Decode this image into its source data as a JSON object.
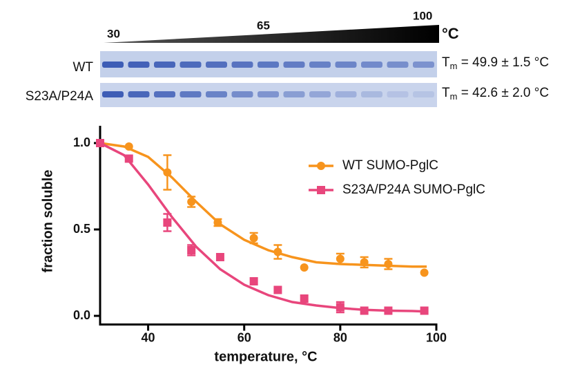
{
  "gel": {
    "temperature_labels": [
      "30",
      "65",
      "100"
    ],
    "unit": "°C",
    "rows": [
      {
        "label": "WT",
        "tm_symbol": "T",
        "tm_subscript": "m",
        "tm_text": " = 49.9 ± 1.5 °C"
      },
      {
        "label": "S23A/P24A",
        "tm_symbol": "T",
        "tm_subscript": "m",
        "tm_text": " = 42.6 ± 2.0 °C"
      }
    ]
  },
  "chart_data": {
    "type": "scatter",
    "xlabel": "temperature, °C",
    "ylabel": "fraction soluble",
    "xlim": [
      30,
      100
    ],
    "ylim": [
      -0.05,
      1.1
    ],
    "xticks": [
      40,
      60,
      80,
      100
    ],
    "yticks": [
      {
        "value": 0,
        "label": "0.0"
      },
      {
        "value": 0.5,
        "label": "0.5"
      },
      {
        "value": 1,
        "label": "1.0"
      }
    ],
    "fit_x": [
      30,
      35,
      40,
      45,
      50,
      55,
      60,
      65,
      70,
      75,
      80,
      85,
      90,
      95,
      98
    ],
    "series": [
      {
        "name": "WT SUMO-PglC",
        "color": "#f7941d",
        "marker": "circle",
        "x": [
          30,
          36,
          44,
          49,
          54.5,
          62,
          67,
          72.5,
          80,
          85,
          90,
          97.5
        ],
        "values": [
          1.0,
          0.98,
          0.83,
          0.66,
          0.54,
          0.45,
          0.37,
          0.28,
          0.33,
          0.31,
          0.3,
          0.25
        ],
        "errors": [
          null,
          null,
          0.1,
          0.03,
          0.02,
          0.03,
          0.04,
          null,
          0.03,
          0.03,
          0.03,
          null
        ],
        "fit": [
          1.0,
          0.98,
          0.92,
          0.8,
          0.66,
          0.53,
          0.44,
          0.38,
          0.34,
          0.31,
          0.3,
          0.295,
          0.29,
          0.285,
          0.285
        ]
      },
      {
        "name": "S23A/P24A SUMO-PglC",
        "color": "#e8467c",
        "marker": "square",
        "x": [
          30,
          36,
          44,
          49,
          55,
          62,
          67,
          72.5,
          80,
          85,
          90,
          97.5
        ],
        "values": [
          1.0,
          0.91,
          0.54,
          0.38,
          0.34,
          0.2,
          0.15,
          0.1,
          0.05,
          0.03,
          0.03,
          0.03
        ],
        "errors": [
          null,
          null,
          0.05,
          0.03,
          null,
          null,
          null,
          null,
          0.03,
          null,
          null,
          null
        ],
        "fit": [
          1.0,
          0.93,
          0.76,
          0.57,
          0.4,
          0.27,
          0.18,
          0.12,
          0.08,
          0.06,
          0.045,
          0.035,
          0.03,
          0.028,
          0.025
        ]
      }
    ]
  }
}
